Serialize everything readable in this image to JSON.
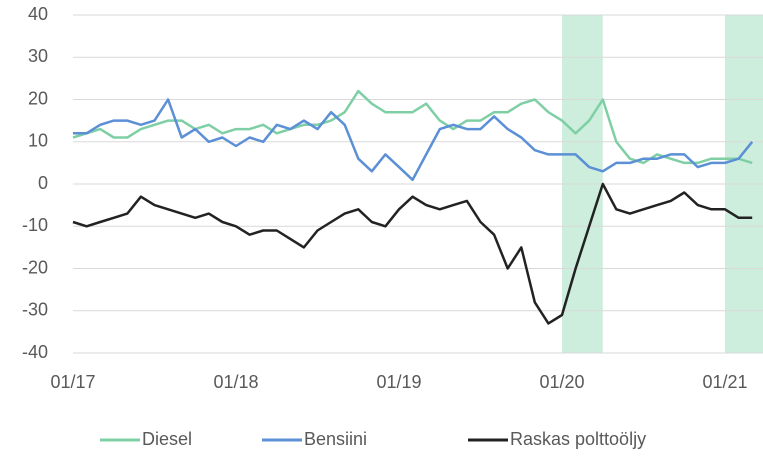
{
  "chart_data": {
    "type": "line",
    "x": [
      "01/17",
      "02/17",
      "03/17",
      "04/17",
      "05/17",
      "06/17",
      "07/17",
      "08/17",
      "09/17",
      "10/17",
      "11/17",
      "12/17",
      "01/18",
      "02/18",
      "03/18",
      "04/18",
      "05/18",
      "06/18",
      "07/18",
      "08/18",
      "09/18",
      "10/18",
      "11/18",
      "12/18",
      "01/19",
      "02/19",
      "03/19",
      "04/19",
      "05/19",
      "06/19",
      "07/19",
      "08/19",
      "09/19",
      "10/19",
      "11/19",
      "12/19",
      "01/20",
      "02/20",
      "03/20",
      "04/20",
      "05/20",
      "06/20",
      "07/20",
      "08/20",
      "09/20",
      "10/20",
      "11/20",
      "12/20",
      "01/21",
      "02/21",
      "03/21"
    ],
    "series": [
      {
        "name": "Diesel",
        "color": "#7fcfa5",
        "values": [
          11,
          12,
          13,
          11,
          11,
          13,
          14,
          15,
          15,
          13,
          14,
          12,
          13,
          13,
          14,
          12,
          13,
          14,
          14,
          15,
          17,
          22,
          19,
          17,
          17,
          17,
          19,
          15,
          13,
          15,
          15,
          17,
          17,
          19,
          20,
          17,
          15,
          12,
          15,
          20,
          10,
          6,
          5,
          7,
          6,
          5,
          5,
          6,
          6,
          6,
          5
        ]
      },
      {
        "name": "Bensiini",
        "color": "#5b8fd6",
        "values": [
          12,
          12,
          14,
          15,
          15,
          14,
          15,
          20,
          11,
          13,
          10,
          11,
          9,
          11,
          10,
          14,
          13,
          15,
          13,
          17,
          14,
          6,
          3,
          7,
          4,
          1,
          7,
          13,
          14,
          13,
          13,
          16,
          13,
          11,
          8,
          7,
          7,
          7,
          4,
          3,
          5,
          5,
          6,
          6,
          7,
          7,
          4,
          5,
          5,
          6,
          10
        ]
      },
      {
        "name": "Raskas polttoöljy",
        "color": "#222222",
        "values": [
          -9,
          -10,
          -9,
          -8,
          -7,
          -3,
          -5,
          -6,
          -7,
          -8,
          -7,
          -9,
          -10,
          -12,
          -11,
          -11,
          -13,
          -15,
          -11,
          -9,
          -7,
          -6,
          -9,
          -10,
          -6,
          -3,
          -5,
          -6,
          -5,
          -4,
          -9,
          -12,
          -20,
          -15,
          -28,
          -33,
          -31,
          -20,
          -10,
          0,
          -6,
          -7,
          -6,
          -5,
          -4,
          -2,
          -5,
          -6,
          -6,
          -8,
          -8
        ]
      }
    ],
    "xticks": [
      "01/17",
      "01/18",
      "01/19",
      "01/20",
      "01/21"
    ],
    "shaded_ranges": [
      [
        "01/20",
        "04/20"
      ],
      [
        "01/21",
        "03/21"
      ]
    ],
    "shade_color": "#cdeedd",
    "ylim": [
      -40,
      40
    ],
    "yticks": [
      -40,
      -30,
      -20,
      -10,
      0,
      10,
      20,
      30,
      40
    ],
    "grid": true
  }
}
